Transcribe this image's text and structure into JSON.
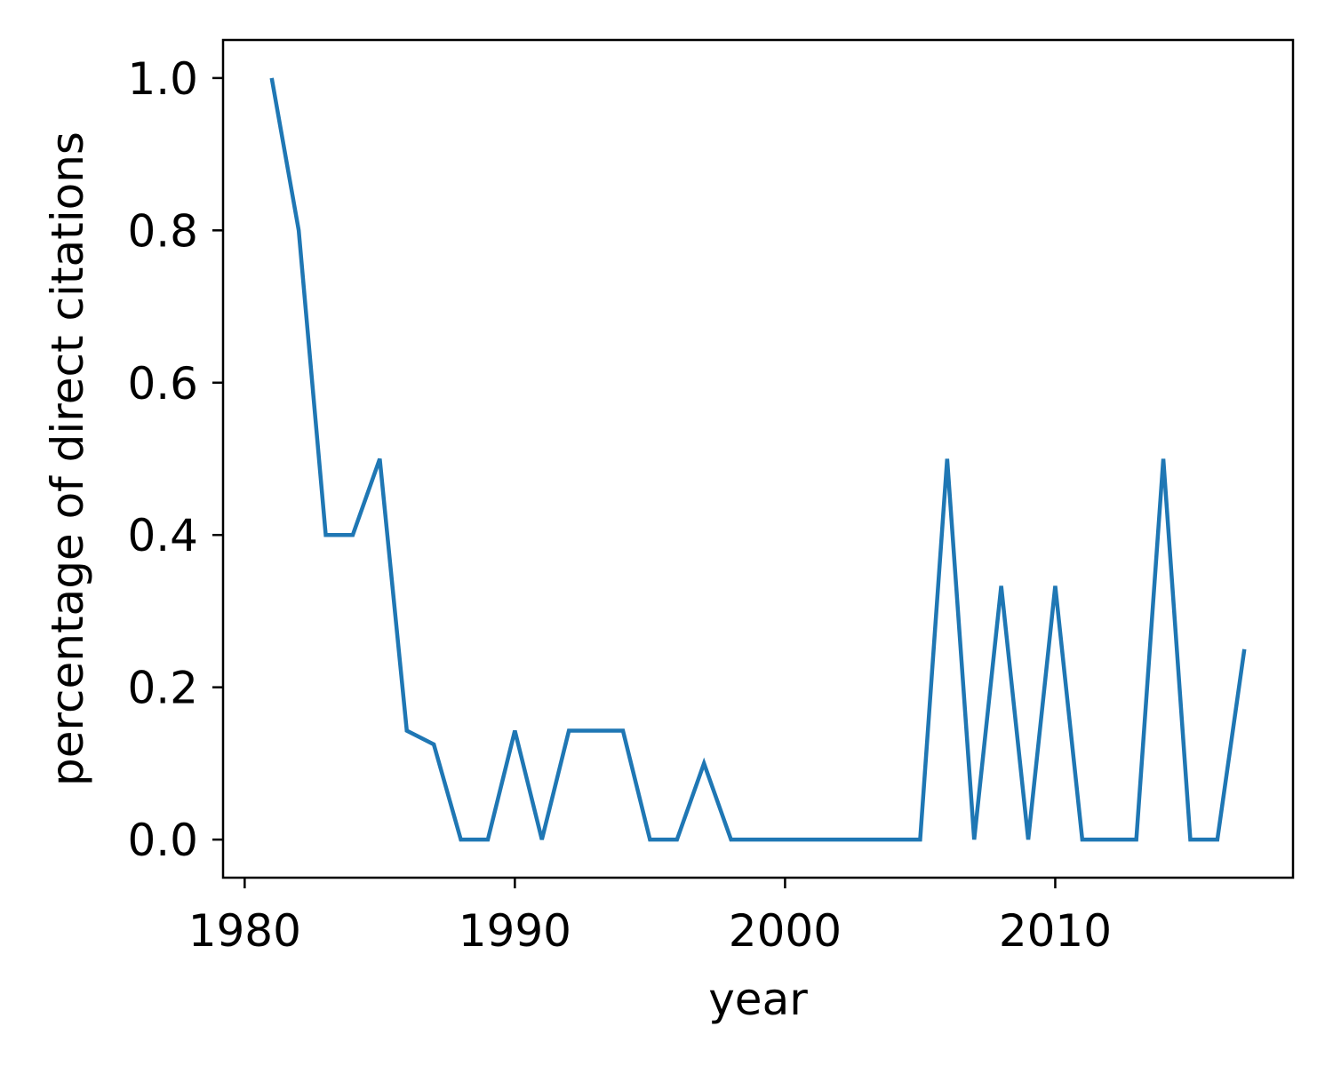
{
  "chart_data": {
    "type": "line",
    "title": "",
    "xlabel": "year",
    "ylabel": "percentage of direct citations",
    "xlim": [
      1979.2,
      2018.8
    ],
    "ylim": [
      -0.05,
      1.05
    ],
    "xticks": [
      1980,
      1990,
      2000,
      2010
    ],
    "yticks": [
      0.0,
      0.2,
      0.4,
      0.6,
      0.8,
      1.0
    ],
    "ytick_labels": [
      "0.0",
      "0.2",
      "0.4",
      "0.6",
      "0.8",
      "1.0"
    ],
    "grid": false,
    "series": [
      {
        "color": "#1f77b4",
        "x": [
          1981,
          1982,
          1983,
          1984,
          1985,
          1986,
          1987,
          1988,
          1989,
          1990,
          1991,
          1992,
          1993,
          1994,
          1995,
          1996,
          1997,
          1998,
          1999,
          2000,
          2001,
          2002,
          2003,
          2004,
          2005,
          2006,
          2007,
          2008,
          2009,
          2010,
          2011,
          2012,
          2013,
          2014,
          2015,
          2016,
          2017
        ],
        "y": [
          1.0,
          0.8,
          0.4,
          0.4,
          0.5,
          0.143,
          0.125,
          0.0,
          0.0,
          0.143,
          0.0,
          0.143,
          0.143,
          0.143,
          0.0,
          0.0,
          0.1,
          0.0,
          0.0,
          0.0,
          0.0,
          0.0,
          0.0,
          0.0,
          0.0,
          0.5,
          0.0,
          0.333,
          0.0,
          0.333,
          0.0,
          0.0,
          0.0,
          0.5,
          0.0,
          0.0,
          0.25
        ]
      }
    ]
  }
}
